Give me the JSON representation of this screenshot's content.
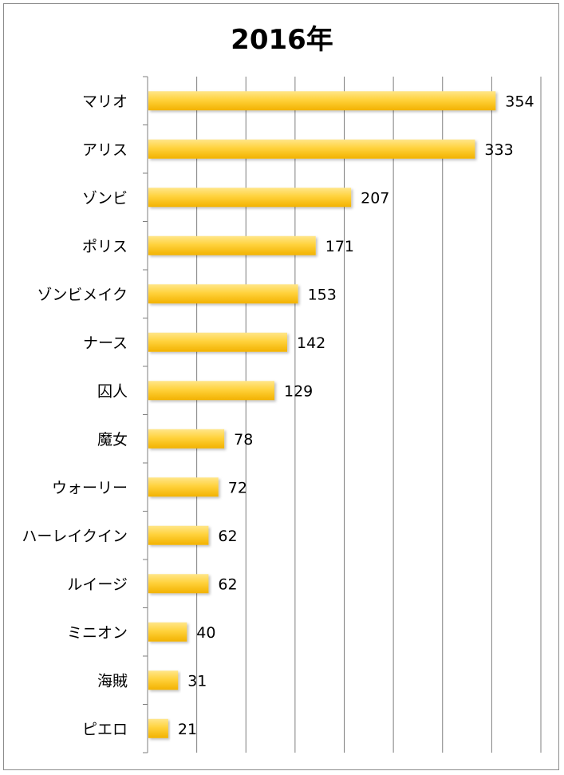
{
  "chart_data": {
    "type": "bar",
    "orientation": "horizontal",
    "title": "2016年",
    "categories": [
      "マリオ",
      "アリス",
      "ゾンビ",
      "ポリス",
      "ゾンビメイク",
      "ナース",
      "囚人",
      "魔女",
      "ウォーリー",
      "ハーレイクイン",
      "ルイージ",
      "ミニオン",
      "海賊",
      "ピエロ"
    ],
    "values": [
      354,
      333,
      207,
      171,
      153,
      142,
      129,
      78,
      72,
      62,
      62,
      40,
      31,
      21
    ],
    "xlim": [
      0,
      400
    ],
    "grid": true,
    "legend": "none",
    "bar_color": "#FFC000",
    "bar_color_light": "#FFE27A"
  }
}
